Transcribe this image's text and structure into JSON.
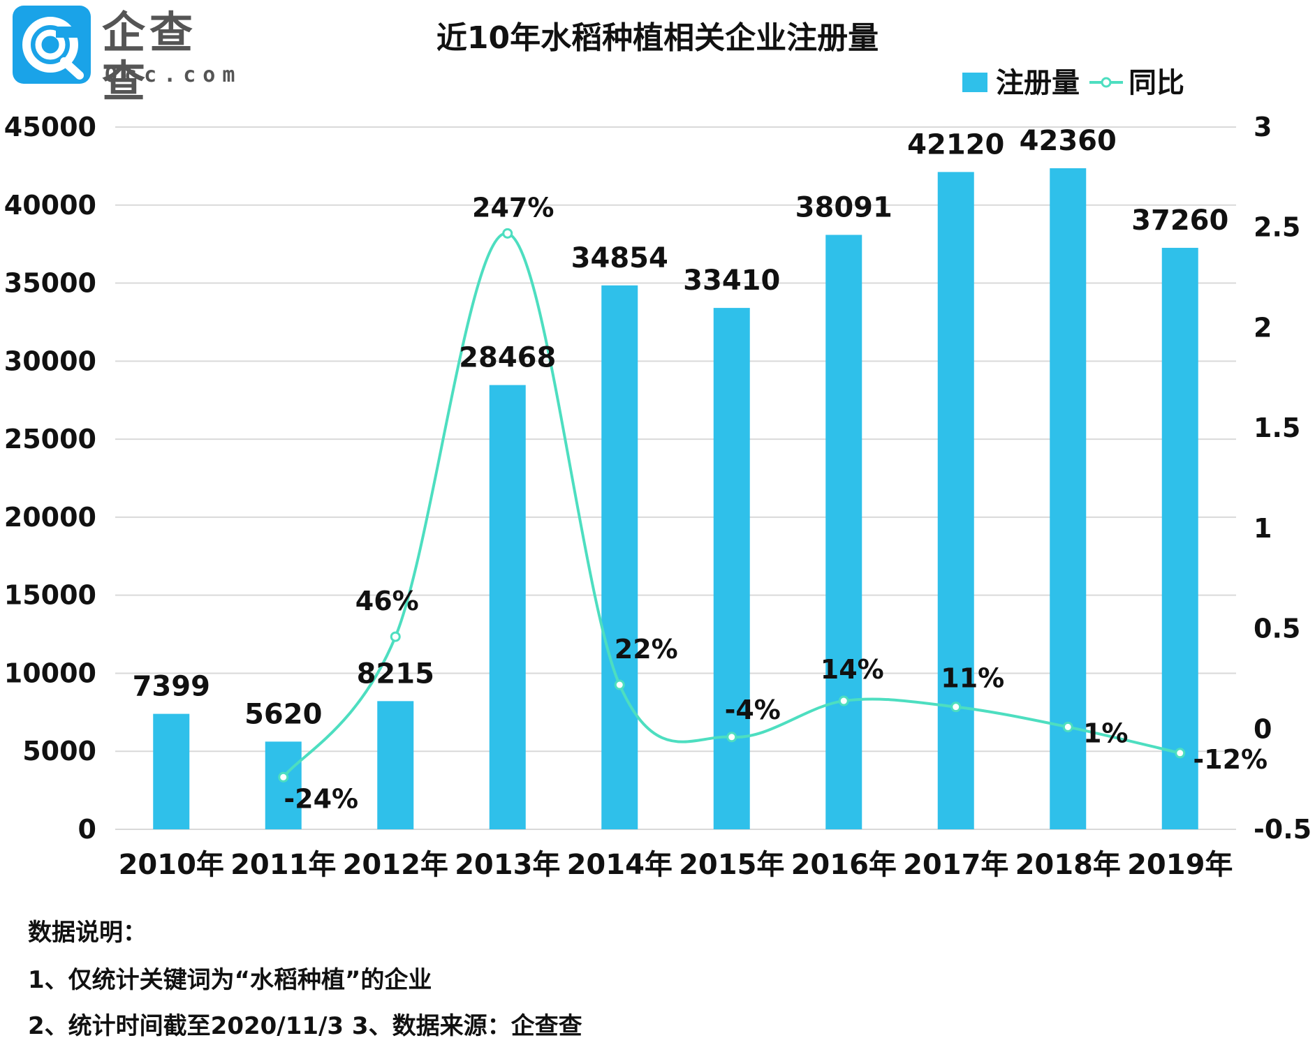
{
  "logo": {
    "cn": "企查查",
    "en": "Qcc.com"
  },
  "chart_data": {
    "type": "bar",
    "title": "近10年水稻种植相关企业注册量",
    "categories": [
      "2010年",
      "2011年",
      "2012年",
      "2013年",
      "2014年",
      "2015年",
      "2016年",
      "2017年",
      "2018年",
      "2019年"
    ],
    "series": [
      {
        "name": "注册量",
        "type": "bar",
        "axis": "left",
        "values": [
          7399,
          5620,
          8215,
          28468,
          34854,
          33410,
          38091,
          42120,
          42360,
          37260
        ],
        "labels": [
          "7399",
          "5620",
          "8215",
          "28468",
          "34854",
          "33410",
          "38091",
          "42120",
          "42360",
          "37260"
        ]
      },
      {
        "name": "同比",
        "type": "line",
        "axis": "right",
        "values": [
          null,
          -0.24,
          0.46,
          2.47,
          0.22,
          -0.04,
          0.14,
          0.11,
          0.01,
          -0.12
        ],
        "labels": [
          "",
          "-24%",
          "46%",
          "247%",
          "22%",
          "-4%",
          "14%",
          "11%",
          "1%",
          "-12%"
        ]
      }
    ],
    "y_left": {
      "min": 0,
      "max": 45000,
      "ticks": [
        "0",
        "5000",
        "10000",
        "15000",
        "20000",
        "25000",
        "30000",
        "35000",
        "40000",
        "45000"
      ]
    },
    "y_right": {
      "min": -0.5,
      "max": 3,
      "ticks": [
        "-0.5",
        "0",
        "0.5",
        "1",
        "1.5",
        "2",
        "2.5",
        "3"
      ]
    },
    "legend": "top-right",
    "grid": true
  },
  "colors": {
    "bar": "#2fc0ea",
    "line": "#4ddec0",
    "grid": "#d9d9d9",
    "text": "#111111"
  },
  "notes": {
    "heading": "数据说明：",
    "line1": "1、仅统计关键词为“水稻种植”的企业",
    "line2": "2、统计时间截至2020/11/3   3、数据来源：企查查"
  }
}
